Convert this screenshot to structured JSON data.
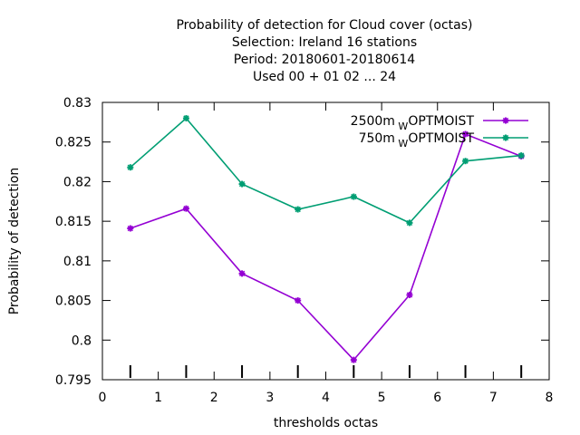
{
  "chart_data": {
    "type": "line",
    "title_lines": [
      "Probability of detection  for Cloud cover (octas)",
      "Selection: Ireland     16 stations",
      "Period: 20180601-20180614",
      "Used  00 + 01 02 ... 24"
    ],
    "xlabel": "thresholds octas",
    "ylabel": "Probability of detection",
    "xlim": [
      0,
      8
    ],
    "ylim": [
      0.795,
      0.83
    ],
    "xticks": [
      0,
      1,
      2,
      3,
      4,
      5,
      6,
      7,
      8
    ],
    "xtick_labels": [
      "0",
      "1",
      "2",
      "3",
      "4",
      "5",
      "6",
      "7",
      "8"
    ],
    "yticks": [
      0.795,
      0.8,
      0.805,
      0.81,
      0.815,
      0.82,
      0.825,
      0.83
    ],
    "ytick_labels": [
      "0.795",
      "0.8",
      "0.805",
      "0.81",
      "0.815",
      "0.82",
      "0.825",
      "0.83"
    ],
    "legend_position": "top-right",
    "grid": false,
    "threshold_markers_x": [
      0.5,
      1.5,
      2.5,
      3.5,
      4.5,
      5.5,
      6.5,
      7.5
    ],
    "series": [
      {
        "name_main": "2500m",
        "name_sub": "W",
        "name_rest": "OPTMOIST",
        "color": "#9400d3",
        "x": [
          0.5,
          1.5,
          2.5,
          3.5,
          4.5,
          5.5,
          6.5,
          7.5
        ],
        "y": [
          0.8141,
          0.8166,
          0.8084,
          0.805,
          0.7975,
          0.8057,
          0.826,
          0.8232
        ]
      },
      {
        "name_main": "750m",
        "name_sub": "W",
        "name_rest": "OPTMOIST",
        "color": "#009e73",
        "x": [
          0.5,
          1.5,
          2.5,
          3.5,
          4.5,
          5.5,
          6.5,
          7.5
        ],
        "y": [
          0.8218,
          0.828,
          0.8197,
          0.8165,
          0.8181,
          0.8148,
          0.8226,
          0.8233
        ]
      }
    ]
  }
}
